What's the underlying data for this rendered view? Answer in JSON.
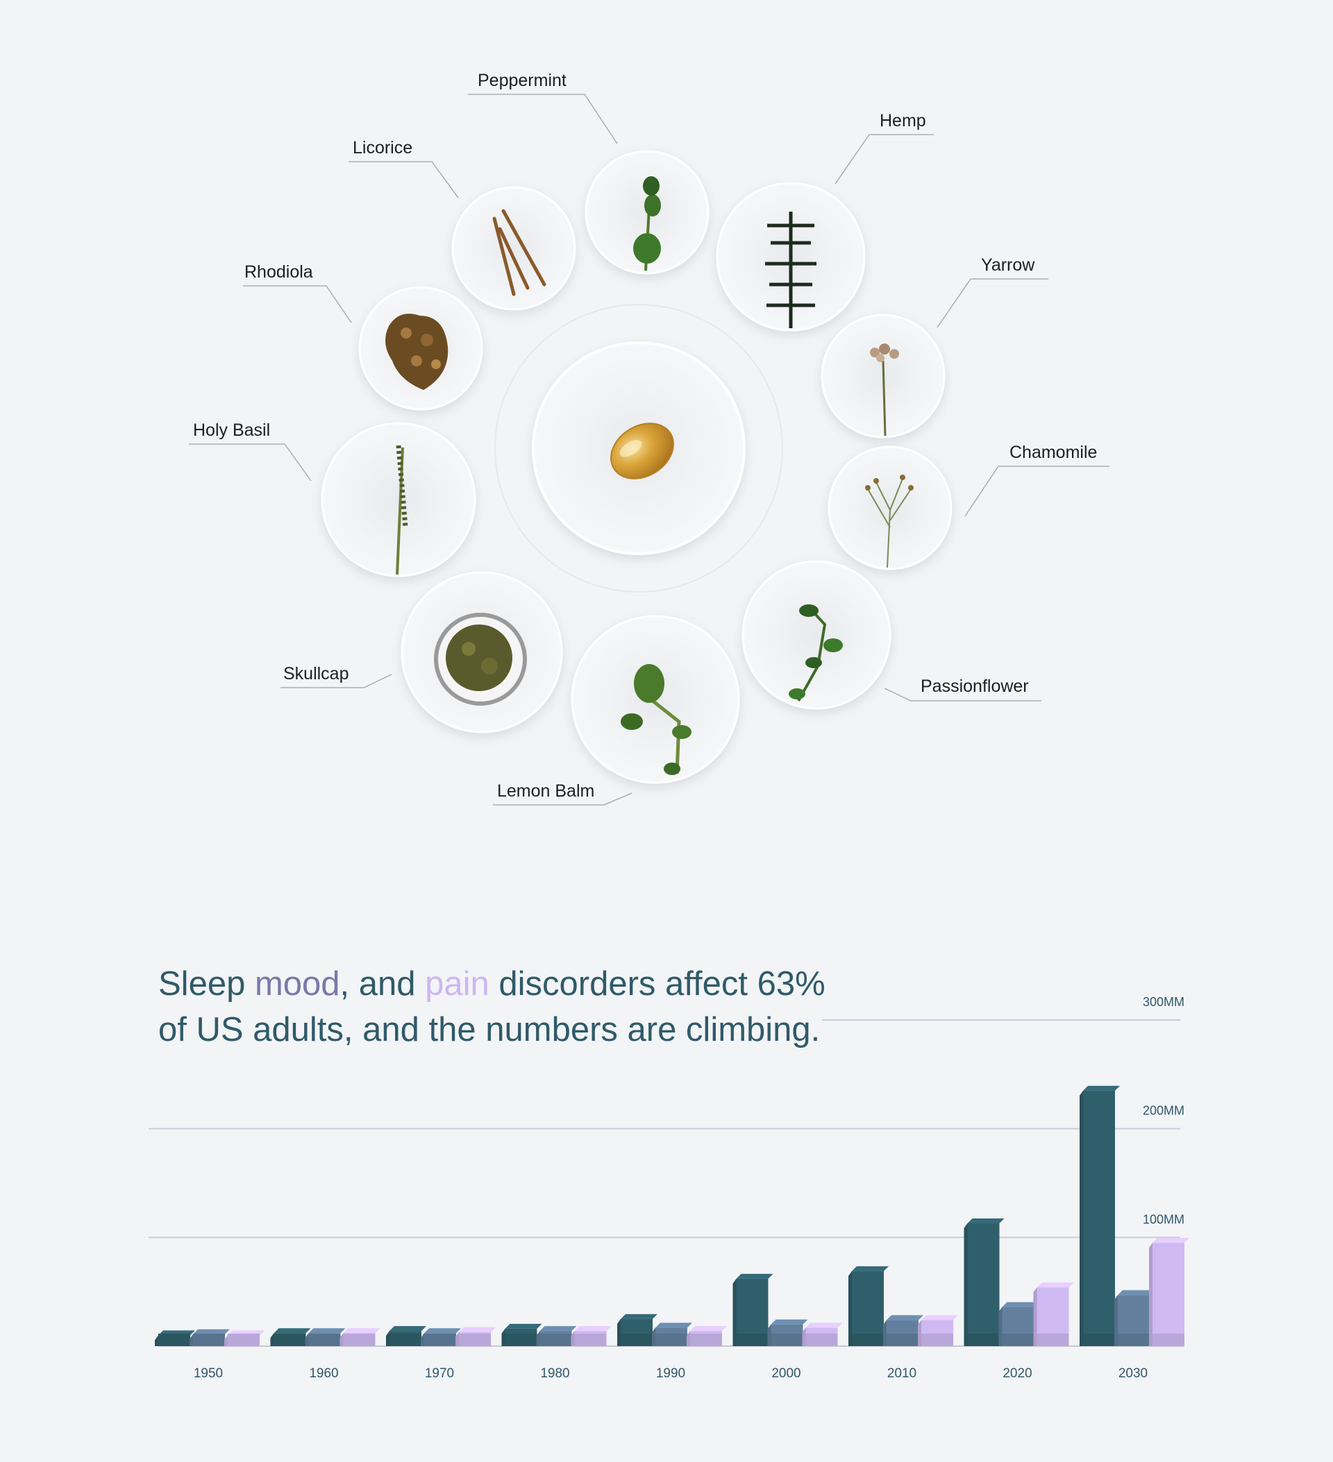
{
  "herbs": [
    {
      "id": "peppermint",
      "label": "Peppermint"
    },
    {
      "id": "hemp",
      "label": "Hemp"
    },
    {
      "id": "licorice",
      "label": "Licorice"
    },
    {
      "id": "yarrow",
      "label": "Yarrow"
    },
    {
      "id": "rhodiola",
      "label": "Rhodiola"
    },
    {
      "id": "holy-basil",
      "label": "Holy Basil"
    },
    {
      "id": "chamomile",
      "label": "Chamomile"
    },
    {
      "id": "skullcap",
      "label": "Skullcap"
    },
    {
      "id": "passionflower",
      "label": "Passionflower"
    },
    {
      "id": "lemon-balm",
      "label": "Lemon Balm"
    }
  ],
  "center_item": {
    "icon": "softgel-capsule-icon"
  },
  "headline": {
    "part1": "Sleep ",
    "mood": "mood",
    "part2": ", and ",
    "pain": "pain",
    "part3": " discorders affect 63% of US adults, and the numbers are climbing."
  },
  "chart_data": {
    "type": "bar",
    "title": "",
    "xlabel": "",
    "ylabel": "",
    "categories": [
      "1950",
      "1960",
      "1970",
      "1980",
      "1990",
      "2000",
      "2010",
      "2020",
      "2030"
    ],
    "series": [
      {
        "color": "#2f5f6b",
        "values": [
          10,
          12,
          14,
          16,
          25,
          62,
          69,
          113,
          235
        ]
      },
      {
        "color": "#62809e",
        "values": [
          11,
          12,
          12,
          14,
          17,
          20,
          24,
          36,
          47
        ]
      },
      {
        "color": "#cfb9f2",
        "values": [
          10,
          12,
          13,
          14,
          14,
          17,
          24,
          54,
          95
        ]
      }
    ],
    "ylim": [
      0,
      300
    ],
    "gridlines": [
      {
        "value": 100,
        "label": "100MM"
      },
      {
        "value": 200,
        "label": "200MM"
      },
      {
        "value": 300,
        "label": "300MM"
      }
    ],
    "grid": true,
    "legend": "none"
  }
}
